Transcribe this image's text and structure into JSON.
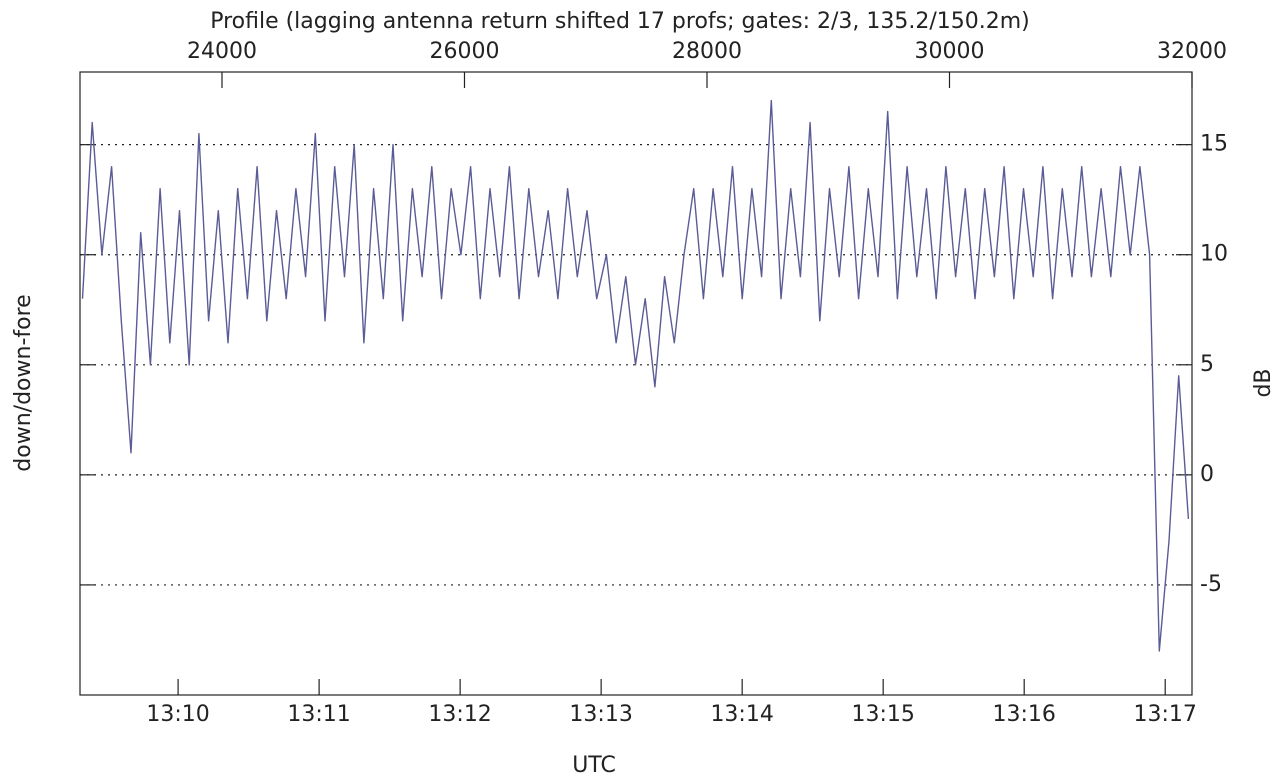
{
  "chart_data": {
    "type": "line",
    "title": "Profile (lagging antenna return shifted 17 profs; gates: 2/3, 135.2/150.2m)",
    "x_label": "UTC",
    "y_label": "down/down-fore",
    "y2_label": "dB",
    "color": "#5b5b96",
    "xlim": [
      22829,
      32000
    ],
    "ylim": [
      -10,
      18.3
    ],
    "yticks": [
      -5,
      0,
      5,
      10,
      15
    ],
    "grid": true,
    "xticks": [
      {
        "value": 23638,
        "label": "13:10"
      },
      {
        "value": 24801,
        "label": "13:11"
      },
      {
        "value": 25964,
        "label": "13:12"
      },
      {
        "value": 27127,
        "label": "13:13"
      },
      {
        "value": 28290,
        "label": "13:14"
      },
      {
        "value": 29453,
        "label": "13:15"
      },
      {
        "value": 30616,
        "label": "13:16"
      },
      {
        "value": 31779,
        "label": "13:17"
      }
    ],
    "x2ticks": [
      24000,
      26000,
      28000,
      30000,
      32000
    ],
    "x": [
      22850,
      22930,
      23010,
      23090,
      23170,
      23250,
      23330,
      23410,
      23490,
      23570,
      23650,
      23730,
      23810,
      23890,
      23970,
      24050,
      24130,
      24210,
      24290,
      24370,
      24450,
      24530,
      24610,
      24690,
      24770,
      24850,
      24930,
      25010,
      25090,
      25170,
      25250,
      25330,
      25410,
      25490,
      25570,
      25650,
      25730,
      25810,
      25890,
      25970,
      26050,
      26130,
      26210,
      26290,
      26370,
      26450,
      26530,
      26610,
      26690,
      26770,
      26850,
      26930,
      27010,
      27090,
      27170,
      27250,
      27330,
      27410,
      27490,
      27570,
      27650,
      27730,
      27810,
      27890,
      27970,
      28050,
      28130,
      28210,
      28290,
      28370,
      28450,
      28530,
      28610,
      28690,
      28770,
      28850,
      28930,
      29010,
      29090,
      29170,
      29250,
      29330,
      29410,
      29490,
      29570,
      29650,
      29730,
      29810,
      29890,
      29970,
      30050,
      30130,
      30210,
      30290,
      30370,
      30450,
      30530,
      30610,
      30690,
      30770,
      30850,
      30930,
      31010,
      31090,
      31170,
      31250,
      31330,
      31410,
      31490,
      31570,
      31650,
      31730,
      31810,
      31890,
      31970
    ],
    "values": [
      8,
      16,
      10,
      14,
      7,
      1,
      11,
      5,
      13,
      6,
      12,
      5,
      15.5,
      7,
      12,
      6,
      13,
      8,
      14,
      7,
      12,
      8,
      13,
      9,
      15.5,
      7,
      14,
      9,
      15,
      6,
      13,
      8,
      15,
      7,
      13,
      9,
      14,
      8,
      13,
      10,
      14,
      8,
      13,
      9,
      14,
      8,
      13,
      9,
      12,
      8,
      13,
      9,
      12,
      8,
      10,
      6,
      9,
      5,
      8,
      4,
      9,
      6,
      10,
      13,
      8,
      13,
      9,
      14,
      8,
      13,
      9,
      17,
      8,
      13,
      9,
      16,
      7,
      13,
      9,
      14,
      8,
      13,
      9,
      16.5,
      8,
      14,
      9,
      13,
      8,
      14,
      9,
      13,
      8,
      13,
      9,
      14,
      8,
      13,
      9,
      14,
      8,
      13,
      9,
      14,
      9,
      13,
      9,
      14,
      10,
      14,
      10,
      -8,
      -3,
      4.5,
      -2
    ]
  }
}
